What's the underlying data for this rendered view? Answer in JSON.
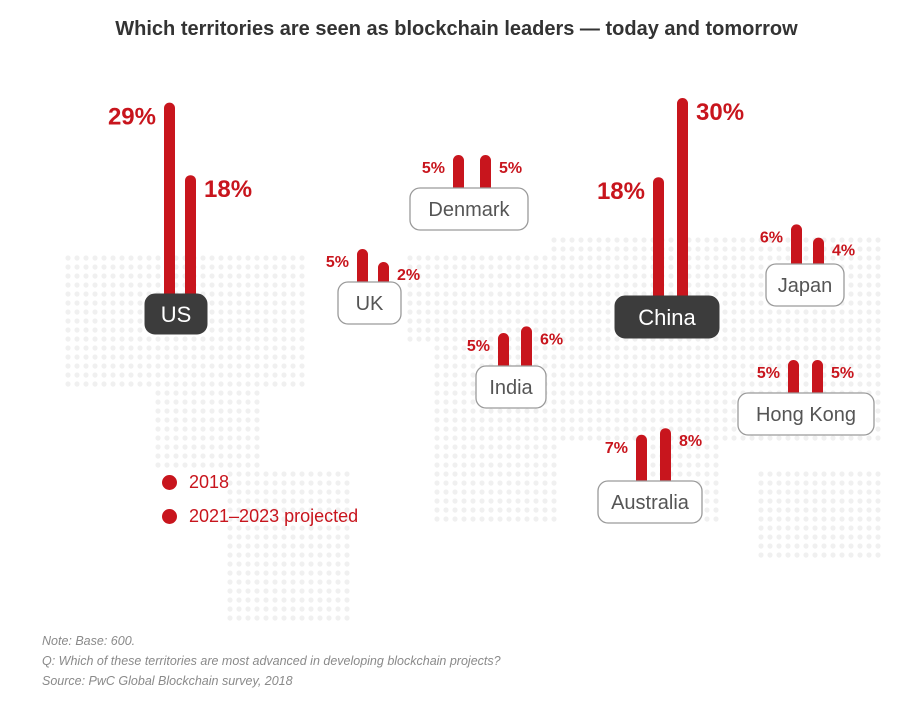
{
  "colors": {
    "bar": "#c8151d",
    "highlight_box": "#3c3c3c",
    "box_border": "#9a9a9a"
  },
  "chart_data": {
    "type": "bar",
    "title": "Which territories are seen as blockchain leaders — today and tomorrow",
    "categories": [
      "US",
      "UK",
      "Denmark",
      "India",
      "China",
      "Japan",
      "Hong Kong",
      "Australia"
    ],
    "series": [
      {
        "name": "2018",
        "values": [
          29,
          5,
          5,
          5,
          18,
          6,
          5,
          7
        ]
      },
      {
        "name": "2021–2023 projected",
        "values": [
          18,
          2,
          5,
          6,
          30,
          4,
          5,
          8
        ]
      }
    ],
    "value_labels": {
      "2018": [
        "29%",
        "5%",
        "5%",
        "5%",
        "18%",
        "6%",
        "5%",
        "7%"
      ],
      "projected": [
        "18%",
        "2%",
        "5%",
        "6%",
        "30%",
        "4%",
        "5%",
        "8%"
      ]
    },
    "highlighted": [
      "US",
      "China"
    ],
    "legend_position": "bottom-left",
    "unit": "%"
  },
  "legend": {
    "items": [
      "2018",
      "2021–2023 projected"
    ]
  },
  "notes": {
    "base": "Note: Base: 600.",
    "question": "Q: Which of these territories are most advanced in developing blockchain projects?",
    "source": "Source: PwC Global Blockchain survey, 2018"
  }
}
